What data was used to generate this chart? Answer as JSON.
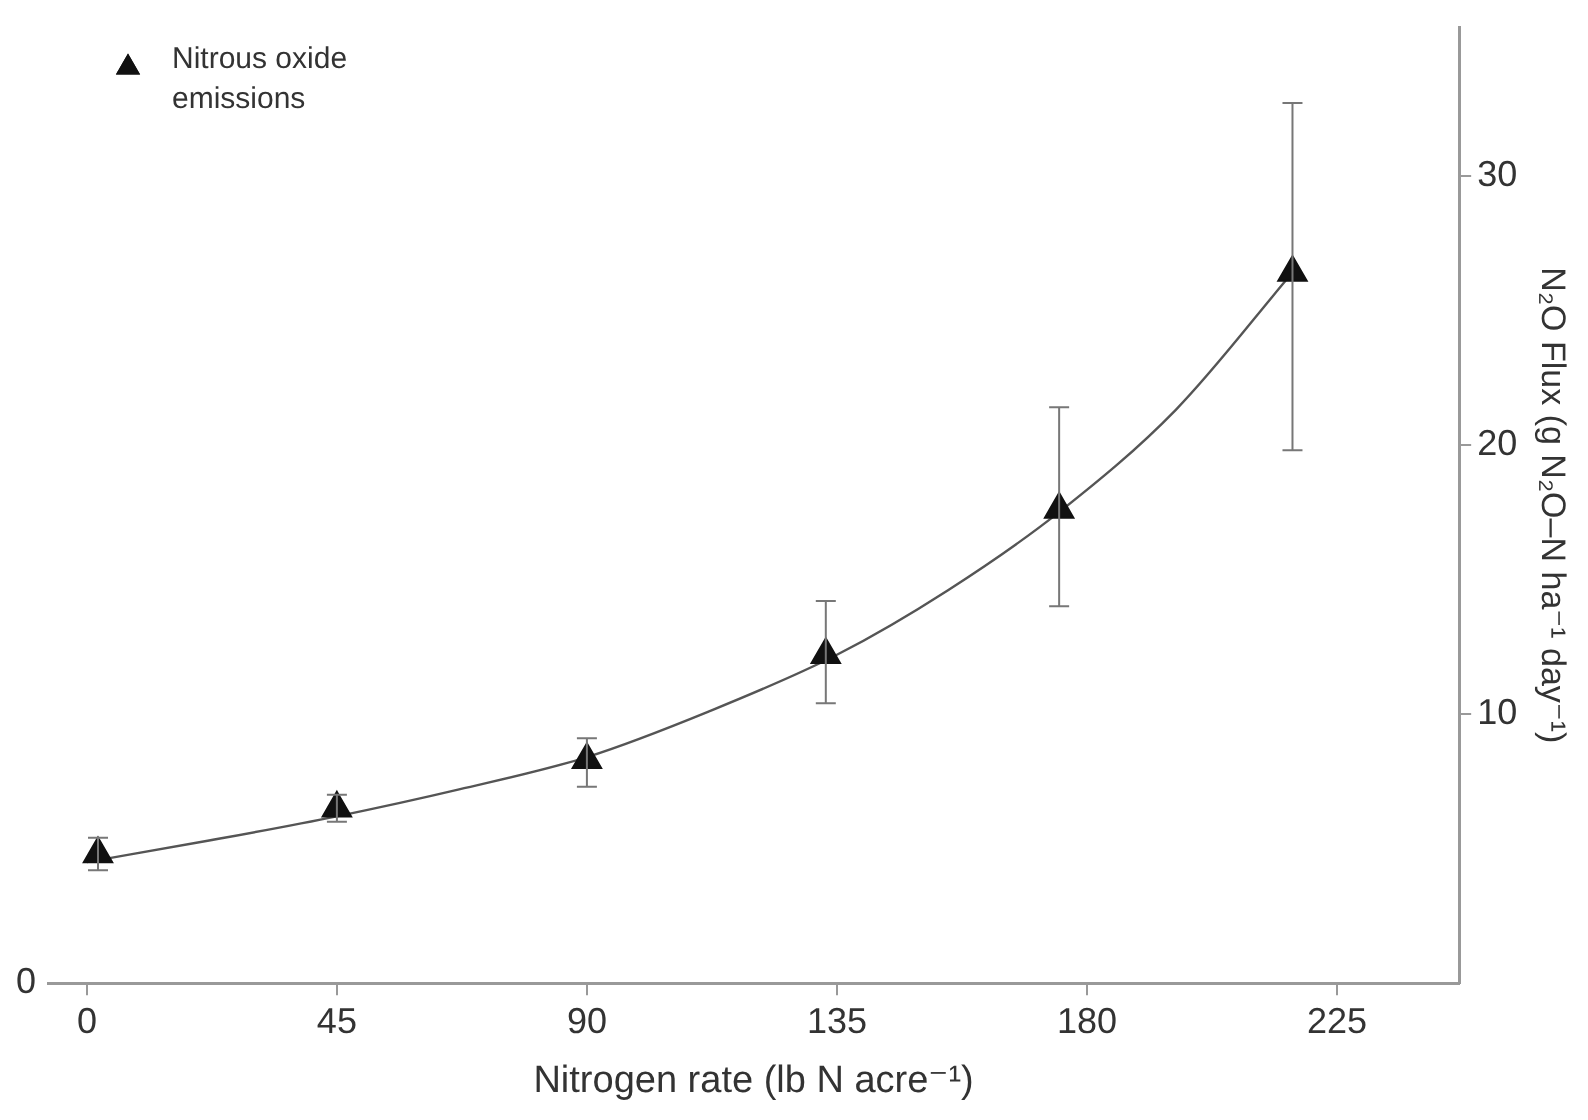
{
  "chart_data": {
    "type": "scatter",
    "xlabel": "Nitrogen rate (lb N acre⁻¹)",
    "ylabel": "N₂O Flux (g N₂O–N ha⁻¹ day⁻¹)",
    "xlim": [
      -7,
      247
    ],
    "xticks": [
      0,
      45,
      90,
      135,
      180,
      225
    ],
    "ylim": [
      0,
      35.5
    ],
    "yticks": [
      10,
      20,
      30
    ],
    "annotations": [
      "0"
    ],
    "grid": false,
    "legend": "top left",
    "marker": "triangle",
    "series": [
      {
        "name": "Nitrous oxide emissions",
        "type": "scatter",
        "color": "#111111",
        "x": [
          2,
          45,
          90,
          133,
          175,
          217
        ],
        "values": [
          4.8,
          6.5,
          8.3,
          12.2,
          17.6,
          26.4
        ],
        "errors": [
          [
            4.2,
            5.4
          ],
          [
            6.0,
            7.0
          ],
          [
            7.3,
            9.1
          ],
          [
            10.4,
            14.2
          ],
          [
            14.0,
            21.4
          ],
          [
            19.8,
            32.7
          ]
        ]
      },
      {
        "type": "line",
        "color": "#555555",
        "marker": "none",
        "line_style": "solid",
        "x": [
          0,
          22,
          45,
          67,
          90,
          112,
          135,
          155,
          175,
          196,
          217
        ],
        "values": [
          4.5,
          5.3,
          6.2,
          7.2,
          8.4,
          10.1,
          12.2,
          14.6,
          17.5,
          21.3,
          26.4
        ]
      }
    ]
  }
}
